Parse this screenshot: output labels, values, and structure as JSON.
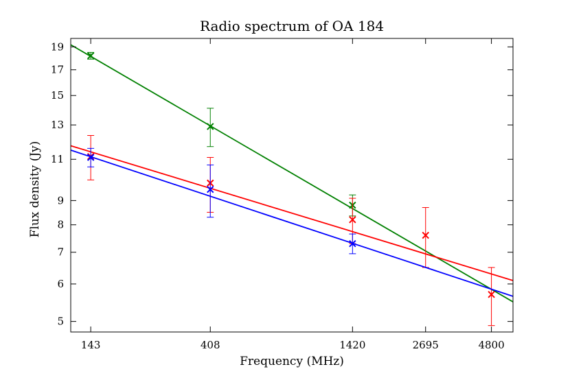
{
  "chart_data": {
    "type": "scatter",
    "title": "Radio spectrum of OA 184",
    "xlabel": "Frequency (MHz)",
    "ylabel": "Flux density (Jy)",
    "xscale": "log",
    "yscale": "log",
    "xlim": [
      120,
      5800
    ],
    "ylim": [
      4.75,
      19.8
    ],
    "xticks": [
      143,
      408,
      1420,
      2695,
      4800
    ],
    "xtick_labels": [
      "143",
      "408",
      "1420",
      "2695",
      "4800"
    ],
    "yticks": [
      5,
      6,
      7,
      8,
      9,
      11,
      13,
      15,
      17,
      19
    ],
    "ytick_labels": [
      "5",
      "6",
      "7",
      "8",
      "9",
      "11",
      "13",
      "15",
      "17",
      "19"
    ],
    "grid": false,
    "series": [
      {
        "name": "green",
        "color": "#008000",
        "points": [
          {
            "x": 143,
            "y": 18.2,
            "err": 0.3
          },
          {
            "x": 408,
            "y": 12.9,
            "err": 1.2
          },
          {
            "x": 1420,
            "y": 8.8,
            "err": 0.45
          }
        ],
        "fit": {
          "x": [
            120,
            5800
          ],
          "y": [
            19.2,
            5.5
          ]
        }
      },
      {
        "name": "red",
        "color": "#ff0000",
        "points": [
          {
            "x": 143,
            "y": 11.15,
            "err": 1.2
          },
          {
            "x": 408,
            "y": 9.8,
            "err": 1.3
          },
          {
            "x": 1420,
            "y": 8.2,
            "err": 0.9
          },
          {
            "x": 2695,
            "y": 7.6,
            "err": 1.1
          },
          {
            "x": 4800,
            "y": 5.7,
            "err": 0.8
          }
        ],
        "fit": {
          "x": [
            120,
            5800
          ],
          "y": [
            11.75,
            6.1
          ]
        }
      },
      {
        "name": "blue",
        "color": "#0000ff",
        "points": [
          {
            "x": 143,
            "y": 11.1,
            "err": 0.5
          },
          {
            "x": 408,
            "y": 9.5,
            "err": 1.2
          },
          {
            "x": 1420,
            "y": 7.3,
            "err": 0.35
          }
        ],
        "fit": {
          "x": [
            120,
            5800
          ],
          "y": [
            11.5,
            5.65
          ]
        }
      }
    ]
  }
}
